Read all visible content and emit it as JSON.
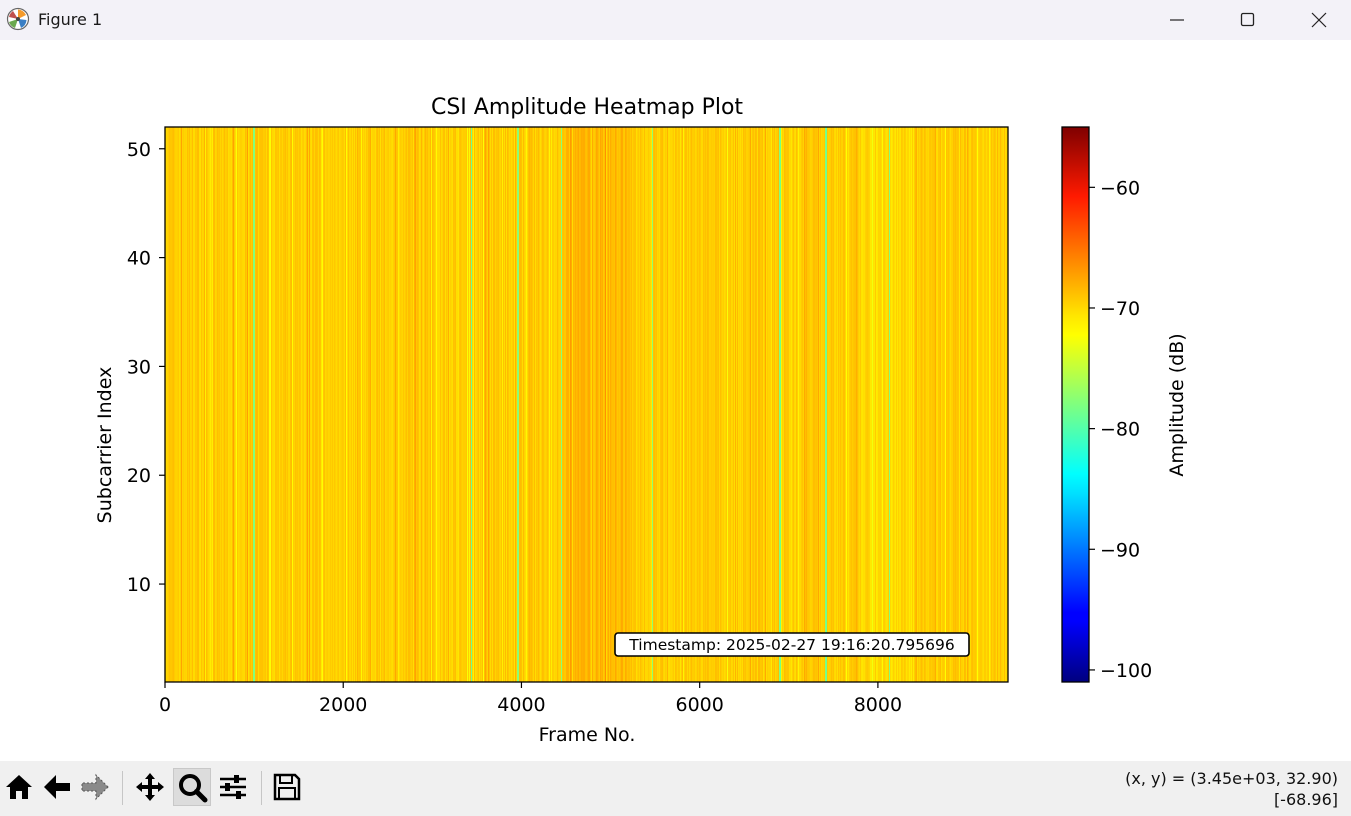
{
  "window": {
    "title": "Figure 1",
    "app_icon": "matplotlib-logo-icon",
    "controls": [
      "minimize-icon",
      "maximize-icon",
      "close-icon"
    ]
  },
  "toolbar": {
    "buttons": [
      {
        "name": "home-button",
        "icon": "home-icon"
      },
      {
        "name": "back-button",
        "icon": "arrow-left-icon"
      },
      {
        "name": "forward-button",
        "icon": "arrow-right-icon"
      },
      {
        "name": "pan-button",
        "icon": "move-arrows-icon"
      },
      {
        "name": "zoom-button",
        "icon": "magnifier-icon",
        "active": true
      },
      {
        "name": "subplots-button",
        "icon": "sliders-icon"
      },
      {
        "name": "save-button",
        "icon": "floppy-disk-icon"
      }
    ],
    "coords_line1": "(x, y) = (3.45e+03, 32.90)",
    "coords_line2": "[-68.96]"
  },
  "chart_data": {
    "type": "heatmap",
    "title": "CSI Amplitude Heatmap Plot",
    "xlabel": "Frame No.",
    "ylabel": "Subcarrier Index",
    "xlim": [
      0,
      9460
    ],
    "ylim": [
      1,
      52
    ],
    "xticks": [
      0,
      2000,
      4000,
      6000,
      8000
    ],
    "xtick_labels": [
      "0",
      "2000",
      "4000",
      "6000",
      "8000"
    ],
    "yticks": [
      10,
      20,
      30,
      40,
      50
    ],
    "ytick_labels": [
      "10",
      "20",
      "30",
      "40",
      "50"
    ],
    "colormap": "jet",
    "colorbar": {
      "label": "Amplitude (dB)",
      "range": [
        -101,
        -55
      ],
      "ticks": [
        -60,
        -70,
        -80,
        -90,
        -100
      ],
      "tick_labels": [
        "−60",
        "−70",
        "−80",
        "−90",
        "−100"
      ]
    },
    "annotation": "Timestamp: 2025-02-27 19:16:20.795696",
    "typical_amplitude_db": -70,
    "low_amplitude_frames": [
      1000,
      3440,
      3960,
      4450,
      5470,
      6900,
      7420,
      8130
    ]
  }
}
